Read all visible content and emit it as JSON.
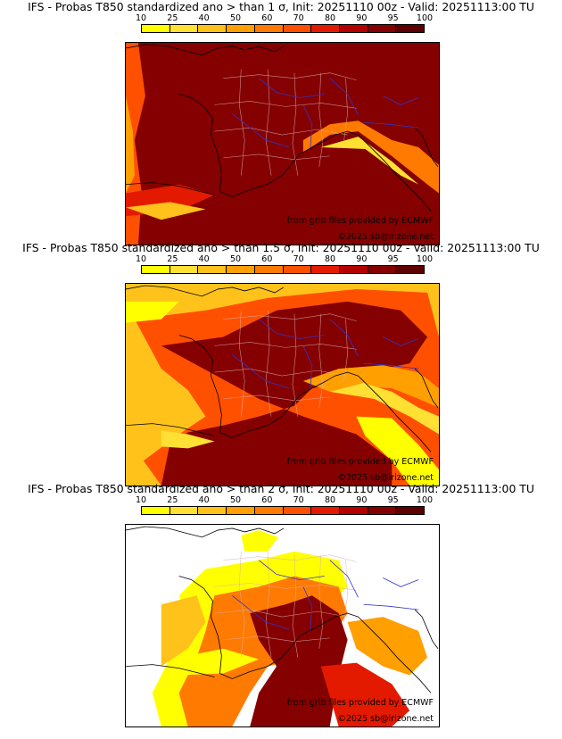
{
  "colors": {
    "scale": [
      "#ffff00",
      "#ffe033",
      "#ffc21a",
      "#ff9f00",
      "#ff7a00",
      "#ff5000",
      "#e31a00",
      "#b40000",
      "#850000",
      "#5c0000"
    ],
    "base": "#850000",
    "coast": "#000000",
    "rivers": "#3333cc",
    "departments": "#d8b0b0"
  },
  "colorbar_ticks": [
    "10",
    "25",
    "40",
    "50",
    "60",
    "70",
    "80",
    "90",
    "95",
    "100"
  ],
  "panels": [
    {
      "title": "IFS - Probas T850  standardized ano > than 1 σ, Init: 20251110 00z - Valid: 20251113:00 TU",
      "credit_source": "from grib files provided by ECMWF",
      "credit_copyright": "©2025 sb@irizone.net"
    },
    {
      "title": "IFS - Probas T850  standardized ano > than 1.5 σ, Init: 20251110 00z - Valid: 20251113:00 TU",
      "credit_source": "from grib files provided by ECMWF",
      "credit_copyright": "©2025 sb@irizone.net"
    },
    {
      "title": "IFS - Probas T850  standardized ano > than 2 σ, Init: 20251110 00z - Valid: 20251113:00 TU",
      "credit_source": "from grib files provided by ECMWF",
      "credit_copyright": "©2025 sb@irizone.net"
    }
  ]
}
